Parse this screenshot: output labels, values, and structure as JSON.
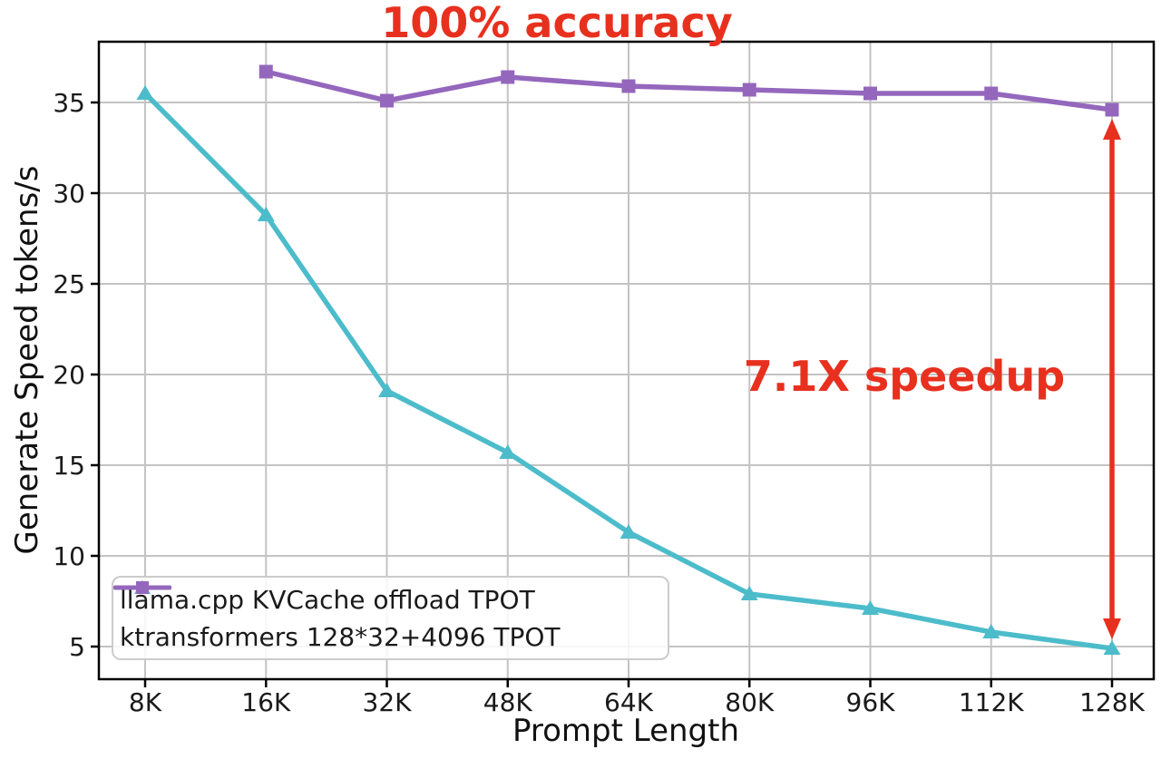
{
  "chart_data": {
    "type": "line",
    "title": "",
    "xlabel": "Prompt Length",
    "ylabel": "Generate Speed tokens/s",
    "categories": [
      "8K",
      "16K",
      "32K",
      "48K",
      "64K",
      "80K",
      "96K",
      "112K",
      "128K"
    ],
    "yticks": [
      5,
      10,
      15,
      20,
      25,
      30,
      35
    ],
    "ylim": [
      3.2,
      38.4
    ],
    "grid": true,
    "legend_position": "lower-left",
    "series": [
      {
        "name": "llama.cpp KVCache offload TPOT",
        "color": "#4cbccb",
        "marker": "triangle",
        "x": [
          "8K",
          "16K",
          "32K",
          "48K",
          "64K",
          "80K",
          "96K",
          "112K",
          "128K"
        ],
        "values": [
          35.5,
          28.8,
          19.1,
          15.7,
          11.3,
          7.9,
          7.1,
          5.8,
          4.9
        ]
      },
      {
        "name": "ktransformers 128*32+4096 TPOT",
        "color": "#9467bd",
        "marker": "square",
        "x": [
          "16K",
          "32K",
          "48K",
          "64K",
          "80K",
          "96K",
          "112K",
          "128K"
        ],
        "values": [
          36.7,
          35.1,
          36.4,
          35.9,
          35.7,
          35.5,
          35.5,
          34.6
        ]
      }
    ],
    "annotations": [
      {
        "id": "accuracy",
        "text": "100% accuracy",
        "color": "#e8301e"
      },
      {
        "id": "speedup",
        "text": "7.1X speedup",
        "color": "#e8301e"
      }
    ],
    "arrow": {
      "x": "128K",
      "from_value": 34.6,
      "to_value": 4.9,
      "style": "double-headed",
      "color": "#e8301e"
    },
    "style": {
      "grid_color": "#c3c3c3",
      "spine_color": "#000000",
      "tick_label_color": "#1a1a1a"
    }
  }
}
